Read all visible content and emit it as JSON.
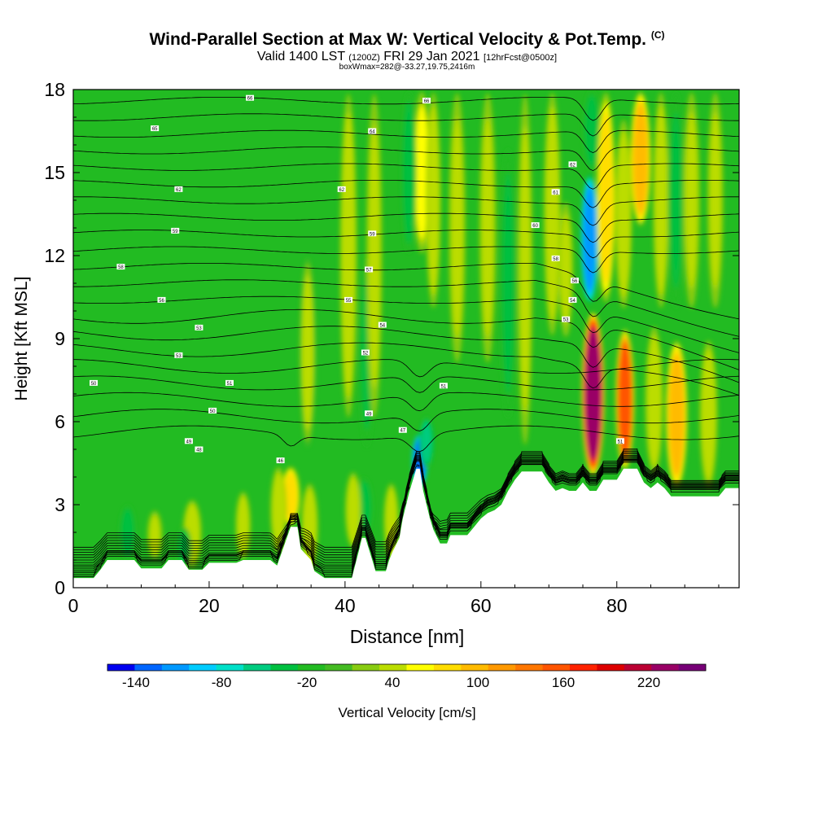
{
  "chart_data": {
    "type": "heatmap",
    "title": "Wind-Parallel Section at Max W: Vertical Velocity & Pot.Temp.",
    "title_tag": "(C)",
    "subtitle_main": "Valid 1400 LST",
    "subtitle_utc": "(1200Z)",
    "subtitle_date": "FRI 29 Jan 2021",
    "subtitle_fcst": "[12hrFcst@0500z]",
    "subsubtitle": "boxWmax=282@-33.27,19.75,2416m",
    "xlabel": "Distance [nm]",
    "ylabel": "Height [Kft MSL]",
    "xlim": [
      0,
      98
    ],
    "ylim": [
      0,
      18
    ],
    "xticks": [
      "0",
      "20",
      "40",
      "60",
      "80"
    ],
    "xtick_values": [
      0,
      20,
      40,
      60,
      80
    ],
    "yticks": [
      "0",
      "3",
      "6",
      "9",
      "12",
      "15",
      "18"
    ],
    "ytick_values": [
      0,
      3,
      6,
      9,
      12,
      15,
      18
    ],
    "colorbar": {
      "label": "Vertical Velocity [cm/s]",
      "tick_labels": [
        "-140",
        "-80",
        "-20",
        "40",
        "100",
        "160",
        "220"
      ],
      "tick_values": [
        -140,
        -80,
        -20,
        40,
        100,
        160,
        220
      ],
      "range": [
        -160,
        260
      ],
      "colors": [
        "#0000f0",
        "#0066ff",
        "#0099ff",
        "#00ccff",
        "#00e0c8",
        "#00cc80",
        "#00c040",
        "#22bb22",
        "#44bb22",
        "#88cc11",
        "#bbdd00",
        "#ffff00",
        "#ffdd00",
        "#ffbb00",
        "#ff9900",
        "#ff7700",
        "#ff5500",
        "#ff2200",
        "#dd0000",
        "#bb0033",
        "#990066",
        "#770077"
      ]
    },
    "terrain": [
      [
        0,
        0.35
      ],
      [
        3,
        0.35
      ],
      [
        4,
        0.65
      ],
      [
        5,
        1.0
      ],
      [
        9,
        1.0
      ],
      [
        10,
        0.7
      ],
      [
        13,
        0.7
      ],
      [
        14,
        1.0
      ],
      [
        16,
        1.0
      ],
      [
        17,
        0.65
      ],
      [
        19,
        0.65
      ],
      [
        20,
        0.9
      ],
      [
        24,
        0.9
      ],
      [
        25,
        1.0
      ],
      [
        29,
        1.0
      ],
      [
        30,
        0.8
      ],
      [
        31,
        1.5
      ],
      [
        32,
        2.2
      ],
      [
        33,
        2.2
      ],
      [
        33.5,
        1.4
      ],
      [
        35,
        1.0
      ],
      [
        35.5,
        0.6
      ],
      [
        37,
        0.35
      ],
      [
        41,
        0.35
      ],
      [
        42,
        1.3
      ],
      [
        42.5,
        1.8
      ],
      [
        43,
        1.8
      ],
      [
        44,
        1.0
      ],
      [
        44.5,
        0.6
      ],
      [
        46,
        0.6
      ],
      [
        46.5,
        1.0
      ],
      [
        47,
        1.3
      ],
      [
        48,
        1.8
      ],
      [
        48.5,
        2.5
      ],
      [
        49.5,
        3.5
      ],
      [
        50.5,
        4.3
      ],
      [
        51,
        4.3
      ],
      [
        51.5,
        3.5
      ],
      [
        52,
        3.0
      ],
      [
        52.5,
        2.5
      ],
      [
        53,
        2.1
      ],
      [
        54,
        1.6
      ],
      [
        55,
        1.6
      ],
      [
        55.5,
        1.9
      ],
      [
        58,
        1.9
      ],
      [
        59,
        2.2
      ],
      [
        60,
        2.5
      ],
      [
        61,
        2.7
      ],
      [
        62,
        2.8
      ],
      [
        63,
        3.0
      ],
      [
        64,
        3.5
      ],
      [
        65,
        3.9
      ],
      [
        66,
        4.2
      ],
      [
        69,
        4.2
      ],
      [
        70,
        3.8
      ],
      [
        71,
        3.5
      ],
      [
        72,
        3.6
      ],
      [
        73,
        3.5
      ],
      [
        74,
        3.5
      ],
      [
        75,
        3.8
      ],
      [
        76,
        3.5
      ],
      [
        77,
        3.5
      ],
      [
        78,
        3.9
      ],
      [
        80,
        3.9
      ],
      [
        81,
        4.3
      ],
      [
        83,
        4.3
      ],
      [
        84,
        3.8
      ],
      [
        85,
        3.6
      ],
      [
        86,
        3.8
      ],
      [
        87,
        3.6
      ],
      [
        88,
        3.3
      ],
      [
        95,
        3.3
      ],
      [
        96,
        3.6
      ],
      [
        98,
        3.6
      ]
    ],
    "velocity_features": [
      {
        "x": 76.5,
        "width": 1.4,
        "y_bottom": 4.0,
        "y_top": 10.0,
        "w": 240
      },
      {
        "x": 81.2,
        "width": 1.0,
        "y_bottom": 4.2,
        "y_top": 9.4,
        "w": 150
      },
      {
        "x": 88.8,
        "width": 1.3,
        "y_bottom": 3.5,
        "y_top": 9.0,
        "w": 100
      },
      {
        "x": 85.5,
        "width": 0.9,
        "y_bottom": 4.0,
        "y_top": 9.5,
        "w": 45
      },
      {
        "x": 93.5,
        "width": 0.9,
        "y_bottom": 3.5,
        "y_top": 9.0,
        "w": 45
      },
      {
        "x": 76.0,
        "width": 0.9,
        "y_bottom": 10.2,
        "y_top": 15.0,
        "w": -120
      },
      {
        "x": 76.3,
        "width": 0.8,
        "y_bottom": 15.0,
        "y_top": 18.0,
        "w": -40
      },
      {
        "x": 78.4,
        "width": 1.0,
        "y_bottom": 10.2,
        "y_top": 18.0,
        "w": 80
      },
      {
        "x": 83.5,
        "width": 1.2,
        "y_bottom": 13.0,
        "y_top": 18.0,
        "w": 95
      },
      {
        "x": 81.0,
        "width": 0.8,
        "y_bottom": 10.0,
        "y_top": 17.0,
        "w": 45
      },
      {
        "x": 51.0,
        "width": 0.7,
        "y_bottom": 3.6,
        "y_top": 5.6,
        "w": -130
      },
      {
        "x": 52.0,
        "width": 0.6,
        "y_bottom": 4.3,
        "y_top": 6.2,
        "w": -60
      },
      {
        "x": 32.0,
        "width": 1.0,
        "y_bottom": 2.2,
        "y_top": 4.4,
        "w": 85
      },
      {
        "x": 30.2,
        "width": 0.7,
        "y_bottom": 1.2,
        "y_top": 4.4,
        "w": 45
      },
      {
        "x": 34.8,
        "width": 0.8,
        "y_bottom": 0.6,
        "y_top": 3.8,
        "w": 45
      },
      {
        "x": 42.8,
        "width": 0.8,
        "y_bottom": 1.8,
        "y_top": 4.0,
        "w": -45
      },
      {
        "x": 41.2,
        "width": 0.7,
        "y_bottom": 1.4,
        "y_top": 4.2,
        "w": 45
      },
      {
        "x": 46.8,
        "width": 0.6,
        "y_bottom": 1.0,
        "y_top": 3.8,
        "w": 45
      },
      {
        "x": 8.0,
        "width": 0.7,
        "y_bottom": 1.0,
        "y_top": 3.0,
        "w": -45
      },
      {
        "x": 17.5,
        "width": 1.0,
        "y_bottom": 0.7,
        "y_top": 3.2,
        "w": 45
      },
      {
        "x": 16.3,
        "width": 0.6,
        "y_bottom": 0.7,
        "y_top": 2.2,
        "w": -30
      },
      {
        "x": 25.0,
        "width": 0.6,
        "y_bottom": 1.0,
        "y_top": 3.5,
        "w": 45
      },
      {
        "x": 12.0,
        "width": 0.6,
        "y_bottom": 1.0,
        "y_top": 2.8,
        "w": 40
      },
      {
        "x": 40.5,
        "width": 0.8,
        "y_bottom": 6.0,
        "y_top": 18.0,
        "w": 45
      },
      {
        "x": 43.2,
        "width": 0.6,
        "y_bottom": 5.0,
        "y_top": 12.0,
        "w": -35
      },
      {
        "x": 44.3,
        "width": 0.7,
        "y_bottom": 6.0,
        "y_top": 18.0,
        "w": 40
      },
      {
        "x": 51.3,
        "width": 0.9,
        "y_bottom": 12.0,
        "y_top": 18.0,
        "w": 55
      },
      {
        "x": 49.4,
        "width": 0.6,
        "y_bottom": 12.0,
        "y_top": 18.0,
        "w": -45
      },
      {
        "x": 53.0,
        "width": 0.6,
        "y_bottom": 10.0,
        "y_top": 18.0,
        "w": 45
      },
      {
        "x": 56.5,
        "width": 0.8,
        "y_bottom": 8.0,
        "y_top": 18.0,
        "w": 40
      },
      {
        "x": 61.0,
        "width": 0.8,
        "y_bottom": 8.0,
        "y_top": 18.0,
        "w": 40
      },
      {
        "x": 64.0,
        "width": 0.7,
        "y_bottom": 6.0,
        "y_top": 16.0,
        "w": -30
      },
      {
        "x": 66.5,
        "width": 0.6,
        "y_bottom": 5.0,
        "y_top": 18.0,
        "w": 40
      },
      {
        "x": 70.5,
        "width": 0.8,
        "y_bottom": 9.0,
        "y_top": 18.0,
        "w": 45
      },
      {
        "x": 72.5,
        "width": 0.6,
        "y_bottom": 9.0,
        "y_top": 14.0,
        "w": 40
      },
      {
        "x": 86.5,
        "width": 0.7,
        "y_bottom": 10.0,
        "y_top": 18.0,
        "w": 45
      },
      {
        "x": 88.7,
        "width": 0.7,
        "y_bottom": 10.0,
        "y_top": 18.0,
        "w": -35
      },
      {
        "x": 91.0,
        "width": 0.8,
        "y_bottom": 10.0,
        "y_top": 18.0,
        "w": 40
      },
      {
        "x": 94.5,
        "width": 0.7,
        "y_bottom": 10.0,
        "y_top": 18.0,
        "w": 40
      },
      {
        "x": 34.5,
        "width": 0.7,
        "y_bottom": 5.0,
        "y_top": 12.0,
        "w": 35
      }
    ],
    "isentrope_levels": [
      0.6,
      0.9,
      1.2,
      1.5,
      1.8,
      2.1,
      2.4,
      2.8,
      3.2,
      3.6,
      4.0,
      4.4,
      4.8,
      5.2,
      5.6,
      6.2,
      6.8,
      7.4,
      8.0,
      8.6,
      9.2,
      9.8,
      10.4,
      11.0,
      11.6,
      12.2,
      12.8,
      13.4,
      14.0,
      14.6,
      15.2,
      15.8,
      16.4,
      17.0,
      17.6
    ],
    "contour_labels": [
      {
        "x": 26,
        "y": 17.7,
        "text": "66"
      },
      {
        "x": 52,
        "y": 17.6,
        "text": "66"
      },
      {
        "x": 12,
        "y": 16.6,
        "text": "65"
      },
      {
        "x": 44,
        "y": 16.5,
        "text": "64"
      },
      {
        "x": 73.5,
        "y": 15.3,
        "text": "62"
      },
      {
        "x": 15.5,
        "y": 14.4,
        "text": "62"
      },
      {
        "x": 39.5,
        "y": 14.4,
        "text": "62"
      },
      {
        "x": 71,
        "y": 14.3,
        "text": "61"
      },
      {
        "x": 68,
        "y": 13.1,
        "text": "60"
      },
      {
        "x": 15,
        "y": 12.9,
        "text": "59"
      },
      {
        "x": 44,
        "y": 12.8,
        "text": "59"
      },
      {
        "x": 71,
        "y": 11.9,
        "text": "58"
      },
      {
        "x": 7,
        "y": 11.6,
        "text": "58"
      },
      {
        "x": 43.5,
        "y": 11.5,
        "text": "57"
      },
      {
        "x": 73.8,
        "y": 11.1,
        "text": "56"
      },
      {
        "x": 13,
        "y": 10.4,
        "text": "56"
      },
      {
        "x": 40.5,
        "y": 10.4,
        "text": "55"
      },
      {
        "x": 73.5,
        "y": 10.4,
        "text": "54"
      },
      {
        "x": 72.5,
        "y": 9.7,
        "text": "53"
      },
      {
        "x": 45.5,
        "y": 9.5,
        "text": "54"
      },
      {
        "x": 18.5,
        "y": 9.4,
        "text": "53"
      },
      {
        "x": 15.5,
        "y": 8.4,
        "text": "53"
      },
      {
        "x": 43,
        "y": 8.5,
        "text": "52"
      },
      {
        "x": 3,
        "y": 7.4,
        "text": "50"
      },
      {
        "x": 23,
        "y": 7.4,
        "text": "51"
      },
      {
        "x": 54.5,
        "y": 7.3,
        "text": "51"
      },
      {
        "x": 20.5,
        "y": 6.4,
        "text": "50"
      },
      {
        "x": 43.5,
        "y": 6.3,
        "text": "49"
      },
      {
        "x": 48.5,
        "y": 5.7,
        "text": "47"
      },
      {
        "x": 17,
        "y": 5.3,
        "text": "49"
      },
      {
        "x": 18.5,
        "y": 5.0,
        "text": "48"
      },
      {
        "x": 30.5,
        "y": 4.6,
        "text": "46"
      },
      {
        "x": 80.5,
        "y": 5.3,
        "text": "51"
      }
    ]
  }
}
